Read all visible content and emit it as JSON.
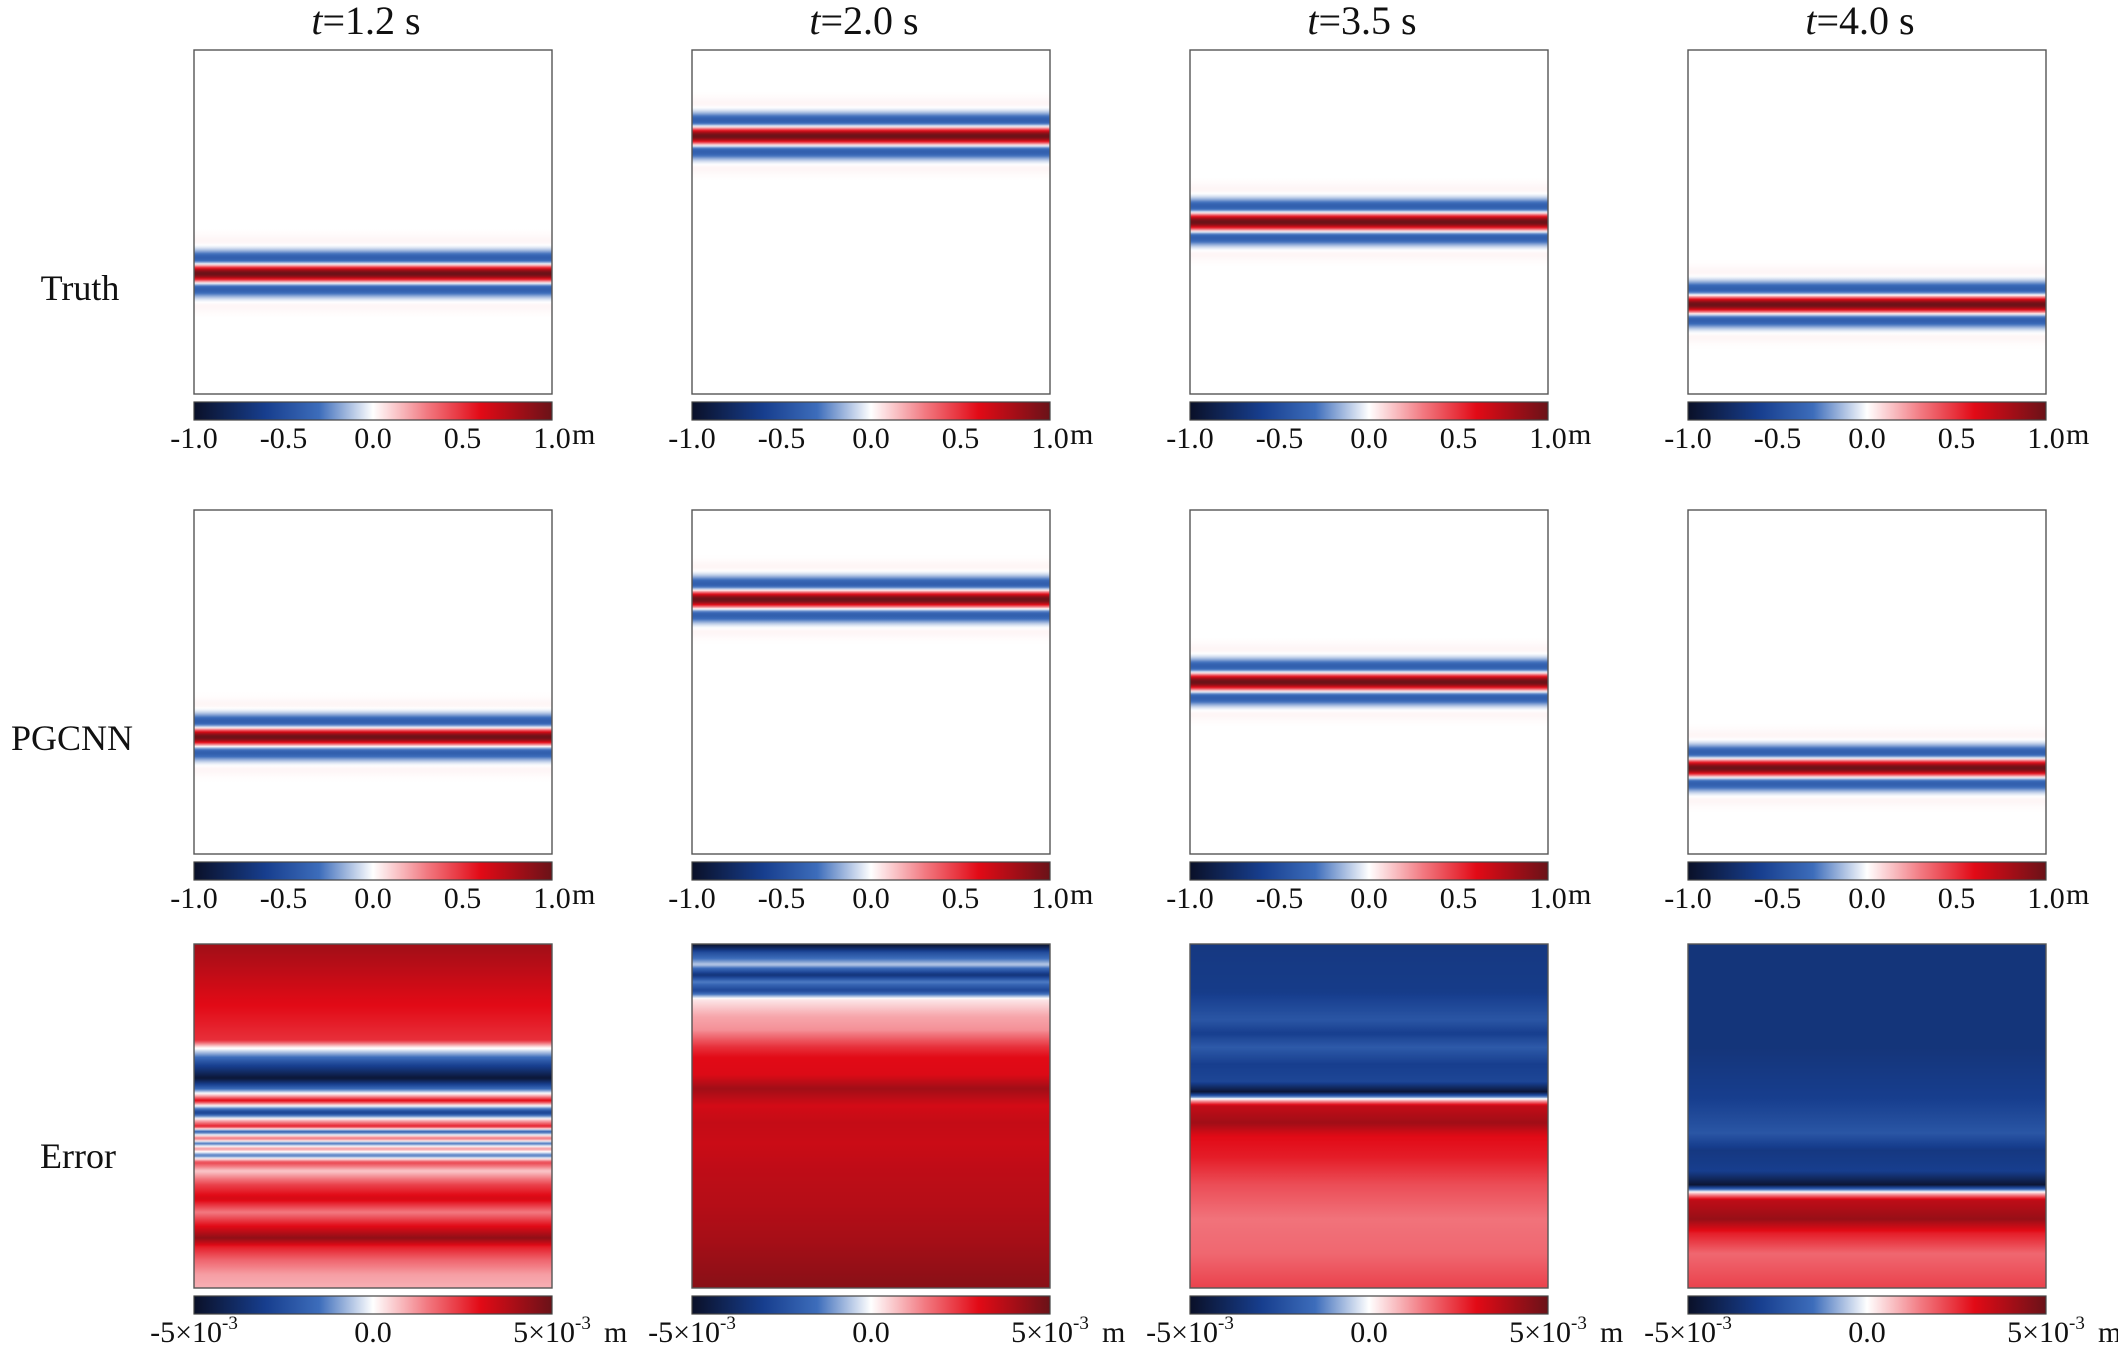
{
  "columns": [
    {
      "t_symbol": "t",
      "t_value": "=1.2 s"
    },
    {
      "t_symbol": "t",
      "t_value": "=2.0 s"
    },
    {
      "t_symbol": "t",
      "t_value": "=3.5 s"
    },
    {
      "t_symbol": "t",
      "t_value": "=4.0 s"
    }
  ],
  "rows": [
    {
      "label": "Truth"
    },
    {
      "label": "PGCNN"
    },
    {
      "label": "Error"
    }
  ],
  "colorbars": {
    "field": {
      "ticks": [
        "-1.0",
        "-0.5",
        "0.0",
        "0.5",
        "1.0"
      ],
      "range": [
        -1.0,
        1.0
      ],
      "unit": "m"
    },
    "error": {
      "left_base": "-5×10",
      "left_exp": "-3",
      "center": "0.0",
      "right_base": "5×10",
      "right_exp": "-3",
      "range": [
        -0.005,
        0.005
      ],
      "unit": "m"
    }
  },
  "colors": {
    "colormap": [
      "#0a1028",
      "#173e8e",
      "#3d6dbb",
      "#ffffff",
      "#f27a82",
      "#e20a16",
      "#6a1218"
    ],
    "panel_border": "#555555",
    "background": "#ffffff"
  },
  "chart_data": {
    "type": "heatmap",
    "description_vertical_axis": "normalized depth 0 (top) to 1 (bottom); values are wave amplitude in m, uniform along horizontal axis",
    "panels": [
      {
        "row": "Truth",
        "time": "t=1.2 s",
        "center": 0.65,
        "width": 0.11,
        "amplitude": 1.0
      },
      {
        "row": "Truth",
        "time": "t=2.0 s",
        "center": 0.25,
        "width": 0.11,
        "amplitude": 1.0
      },
      {
        "row": "Truth",
        "time": "t=3.5 s",
        "center": 0.5,
        "width": 0.11,
        "amplitude": 1.0
      },
      {
        "row": "Truth",
        "time": "t=4.0 s",
        "center": 0.74,
        "width": 0.11,
        "amplitude": 1.0
      },
      {
        "row": "PGCNN",
        "time": "t=1.2 s",
        "center": 0.66,
        "width": 0.11,
        "amplitude": 1.0
      },
      {
        "row": "PGCNN",
        "time": "t=2.0 s",
        "center": 0.26,
        "width": 0.11,
        "amplitude": 1.0
      },
      {
        "row": "PGCNN",
        "time": "t=3.5 s",
        "center": 0.5,
        "width": 0.11,
        "amplitude": 1.0
      },
      {
        "row": "PGCNN",
        "time": "t=4.0 s",
        "center": 0.75,
        "width": 0.11,
        "amplitude": 1.0
      }
    ],
    "error_profiles": [
      {
        "time": "t=1.2 s",
        "stops": [
          [
            0.0,
            0.82
          ],
          [
            0.08,
            0.72
          ],
          [
            0.16,
            0.62
          ],
          [
            0.28,
            0.5
          ],
          [
            0.3,
            0.05
          ],
          [
            0.35,
            -0.55
          ],
          [
            0.39,
            -0.95
          ],
          [
            0.42,
            -0.35
          ],
          [
            0.44,
            0.15
          ],
          [
            0.455,
            0.62
          ],
          [
            0.47,
            0.0
          ],
          [
            0.49,
            -0.6
          ],
          [
            0.51,
            0.1
          ],
          [
            0.53,
            0.55
          ],
          [
            0.545,
            -0.4
          ],
          [
            0.565,
            0.35
          ],
          [
            0.58,
            -0.3
          ],
          [
            0.595,
            0.25
          ],
          [
            0.615,
            -0.3
          ],
          [
            0.635,
            0.45
          ],
          [
            0.66,
            0.12
          ],
          [
            0.7,
            0.45
          ],
          [
            0.74,
            0.65
          ],
          [
            0.78,
            0.3
          ],
          [
            0.82,
            0.6
          ],
          [
            0.855,
            0.88
          ],
          [
            0.88,
            0.55
          ],
          [
            0.92,
            0.35
          ],
          [
            0.96,
            0.22
          ],
          [
            1.0,
            0.18
          ]
        ]
      },
      {
        "time": "t=2.0 s",
        "stops": [
          [
            0.0,
            -1.0
          ],
          [
            0.025,
            -0.5
          ],
          [
            0.06,
            -0.1
          ],
          [
            0.09,
            -0.7
          ],
          [
            0.11,
            -0.25
          ],
          [
            0.135,
            -0.55
          ],
          [
            0.16,
            0.05
          ],
          [
            0.21,
            0.2
          ],
          [
            0.25,
            0.25
          ],
          [
            0.3,
            0.5
          ],
          [
            0.33,
            0.6
          ],
          [
            0.38,
            0.62
          ],
          [
            0.42,
            0.82
          ],
          [
            0.47,
            0.65
          ],
          [
            0.52,
            0.7
          ],
          [
            0.58,
            0.68
          ],
          [
            0.66,
            0.72
          ],
          [
            0.76,
            0.75
          ],
          [
            0.86,
            0.8
          ],
          [
            1.0,
            0.9
          ]
        ]
      },
      {
        "time": "t=3.5 s",
        "stops": [
          [
            0.0,
            -0.65
          ],
          [
            0.14,
            -0.62
          ],
          [
            0.22,
            -0.45
          ],
          [
            0.26,
            -0.6
          ],
          [
            0.3,
            -0.42
          ],
          [
            0.35,
            -0.6
          ],
          [
            0.4,
            -0.55
          ],
          [
            0.43,
            -0.95
          ],
          [
            0.45,
            0.0
          ],
          [
            0.47,
            0.7
          ],
          [
            0.52,
            0.82
          ],
          [
            0.56,
            0.6
          ],
          [
            0.62,
            0.55
          ],
          [
            0.7,
            0.42
          ],
          [
            0.8,
            0.32
          ],
          [
            0.9,
            0.35
          ],
          [
            1.0,
            0.45
          ]
        ]
      },
      {
        "time": "t=4.0 s",
        "stops": [
          [
            0.0,
            -0.68
          ],
          [
            0.3,
            -0.68
          ],
          [
            0.45,
            -0.6
          ],
          [
            0.55,
            -0.45
          ],
          [
            0.6,
            -0.65
          ],
          [
            0.66,
            -0.6
          ],
          [
            0.7,
            -0.95
          ],
          [
            0.72,
            0.0
          ],
          [
            0.745,
            0.72
          ],
          [
            0.8,
            0.85
          ],
          [
            0.84,
            0.55
          ],
          [
            0.9,
            0.35
          ],
          [
            1.0,
            0.45
          ]
        ]
      }
    ]
  }
}
